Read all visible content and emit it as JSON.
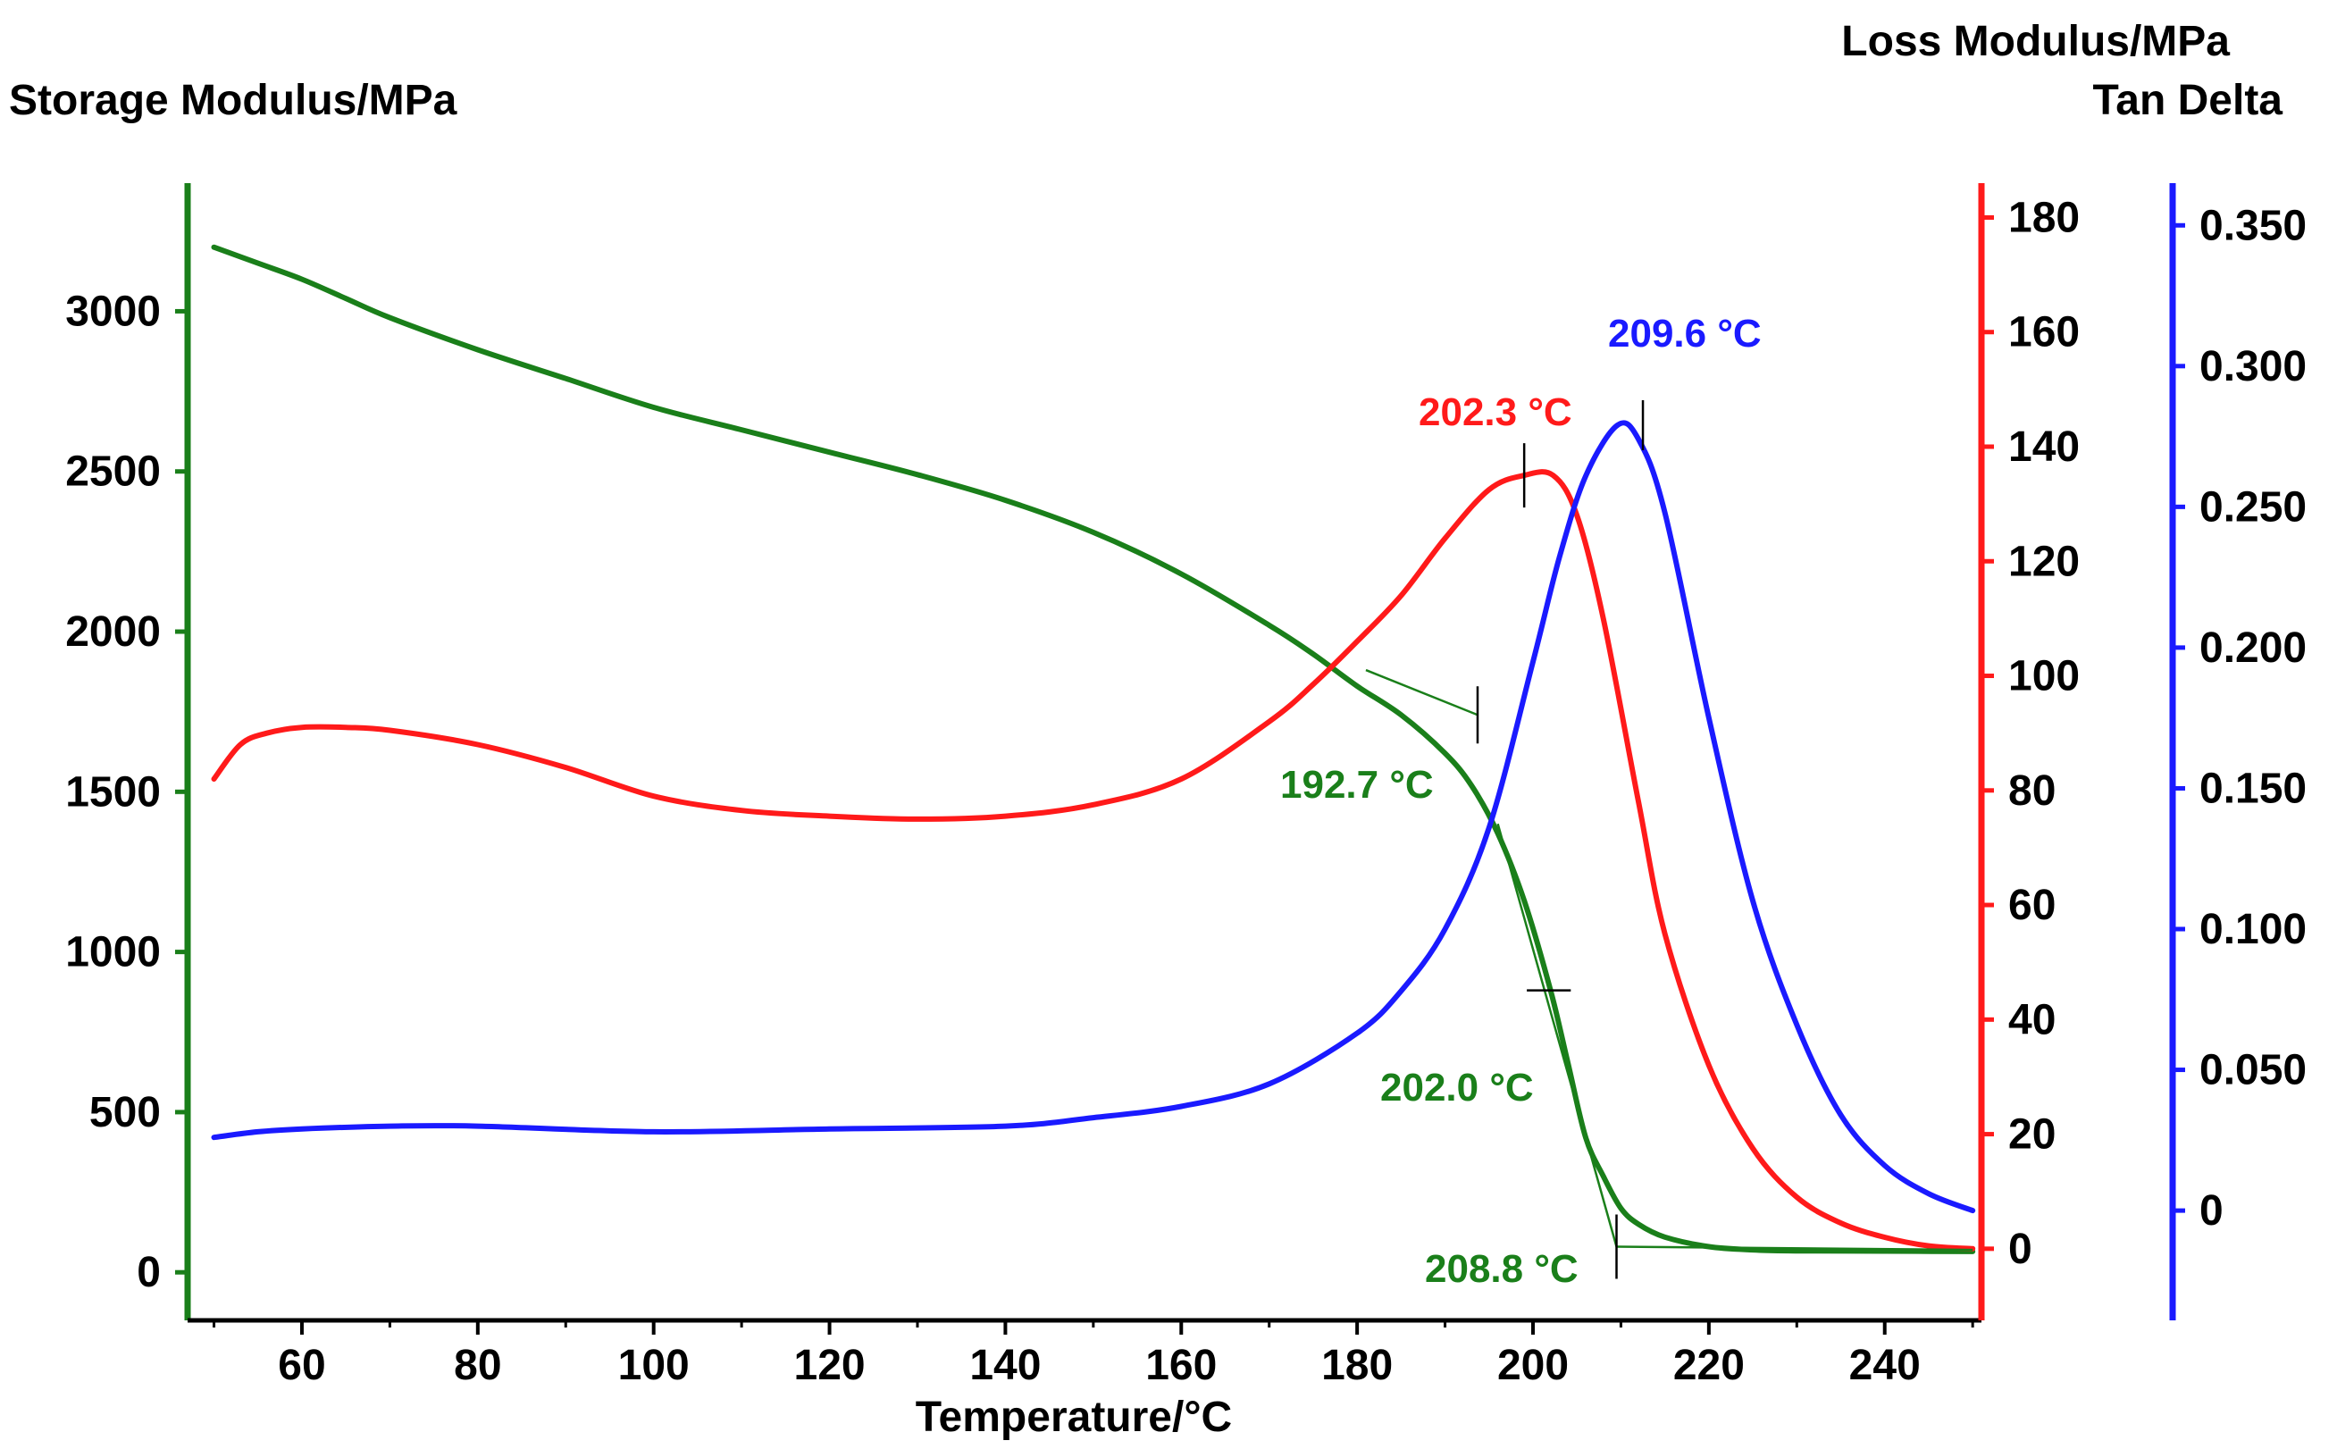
{
  "chart_data": {
    "type": "line",
    "xlabel": "Temperature/°C",
    "y_left_label": "Storage Modulus/MPa",
    "y_right_labels": [
      "Loss Modulus/MPa",
      "Tan Delta"
    ],
    "x_ticks": [
      "60",
      "80",
      "100",
      "120",
      "140",
      "160",
      "180",
      "200",
      "220",
      "240"
    ],
    "y_left_ticks": [
      "0",
      "500",
      "1000",
      "1500",
      "2000",
      "2500",
      "3000"
    ],
    "y_loss_ticks": [
      "0",
      "20",
      "40",
      "60",
      "80",
      "100",
      "120",
      "140",
      "160",
      "180"
    ],
    "y_tan_ticks": [
      "0",
      "0.050",
      "0.100",
      "0.150",
      "0.200",
      "0.250",
      "0.300",
      "0.350"
    ],
    "x_range": [
      47,
      251
    ],
    "y_left_range": [
      -150,
      3400
    ],
    "y_loss_range": [
      -12.5,
      186
    ],
    "y_tan_range": [
      -0.039,
      0.365
    ],
    "colors": {
      "storage": "#1a7f1a",
      "loss": "#ff1a1a",
      "tan": "#1a1aff"
    },
    "series": [
      {
        "name": "Storage Modulus",
        "axis": "left",
        "color": "#1a7f1a",
        "x": [
          50,
          55,
          60,
          65,
          70,
          80,
          90,
          100,
          110,
          120,
          130,
          140,
          150,
          160,
          170,
          175,
          180,
          185,
          190,
          193,
          196,
          199,
          202,
          204,
          206,
          208,
          210,
          212,
          215,
          220,
          225,
          230,
          240,
          250
        ],
        "y": [
          3200,
          3150,
          3100,
          3040,
          2980,
          2880,
          2790,
          2700,
          2630,
          2560,
          2490,
          2410,
          2310,
          2180,
          2020,
          1930,
          1830,
          1740,
          1620,
          1520,
          1370,
          1160,
          880,
          650,
          420,
          300,
          200,
          150,
          110,
          80,
          70,
          67,
          66,
          65
        ]
      },
      {
        "name": "Loss Modulus",
        "axis": "loss",
        "color": "#ff1a1a",
        "x": [
          50,
          53,
          56,
          60,
          65,
          70,
          80,
          90,
          100,
          110,
          120,
          130,
          140,
          150,
          160,
          170,
          175,
          180,
          185,
          190,
          195,
          199,
          202.3,
          205,
          208,
          212,
          215,
          220,
          225,
          230,
          235,
          240,
          245,
          250
        ],
        "y": [
          82,
          88,
          90,
          91,
          91,
          90.5,
          88,
          84,
          79,
          76.5,
          75.5,
          75,
          75.5,
          77.5,
          82,
          92,
          98.5,
          106,
          114,
          124,
          132.5,
          135,
          135,
          128,
          110,
          78,
          55,
          32,
          17.5,
          9,
          4.5,
          2,
          0.5,
          0
        ]
      },
      {
        "name": "Tan Delta",
        "axis": "tan",
        "color": "#1a1aff",
        "x": [
          50,
          55,
          60,
          70,
          80,
          100,
          120,
          140,
          150,
          160,
          170,
          180,
          185,
          190,
          195,
          200,
          203,
          206,
          209.6,
          212,
          215,
          220,
          225,
          230,
          235,
          240,
          245,
          250
        ],
        "y": [
          0.026,
          0.028,
          0.029,
          0.03,
          0.03,
          0.028,
          0.029,
          0.03,
          0.033,
          0.037,
          0.045,
          0.063,
          0.078,
          0.1,
          0.136,
          0.195,
          0.232,
          0.261,
          0.279,
          0.274,
          0.248,
          0.175,
          0.11,
          0.066,
          0.034,
          0.016,
          0.006,
          0
        ]
      }
    ],
    "annotations": [
      {
        "label": "202.3 °C",
        "color": "#ff1a1a",
        "x": 202.3,
        "axis": "loss",
        "y": 135
      },
      {
        "label": "209.6 °C",
        "color": "#1a1aff",
        "x": 209.6,
        "axis": "tan",
        "y": 0.279
      },
      {
        "label": "192.7 °C",
        "color": "#1a7f1a",
        "x": 192.7,
        "axis": "left",
        "y": 1620
      },
      {
        "label": "202.0 °C",
        "color": "#1a7f1a",
        "x": 202.0,
        "axis": "left",
        "y": 880
      },
      {
        "label": "208.8 °C",
        "color": "#1a7f1a",
        "x": 208.8,
        "axis": "left",
        "y": 80
      }
    ],
    "grid": false,
    "legend": "none"
  }
}
